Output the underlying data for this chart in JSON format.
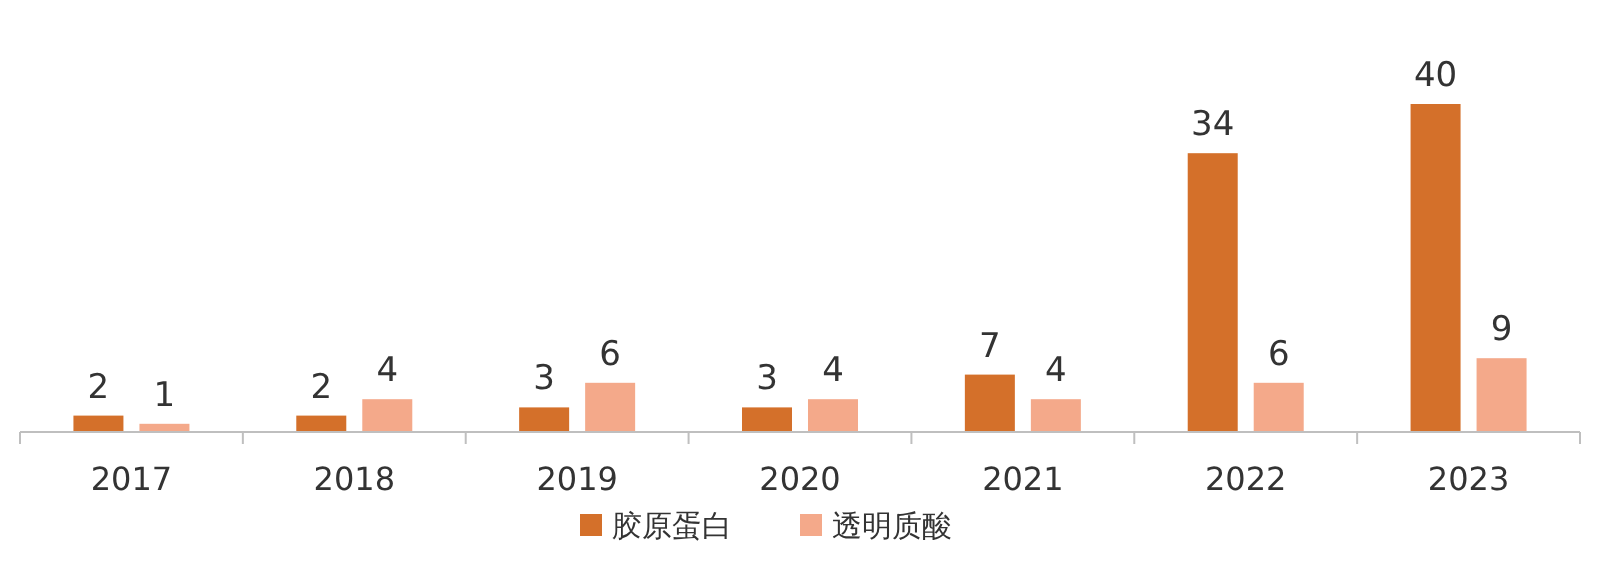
{
  "chart_data": {
    "type": "bar",
    "categories": [
      "2017",
      "2018",
      "2019",
      "2020",
      "2021",
      "2022",
      "2023"
    ],
    "series": [
      {
        "name": "胶原蛋白",
        "color": "#d4702a",
        "values": [
          2,
          2,
          3,
          3,
          7,
          34,
          40
        ]
      },
      {
        "name": "透明质酸",
        "color": "#f4a98a",
        "values": [
          1,
          4,
          6,
          4,
          4,
          6,
          9
        ]
      }
    ],
    "data_labels": true,
    "legend": "bottom"
  }
}
